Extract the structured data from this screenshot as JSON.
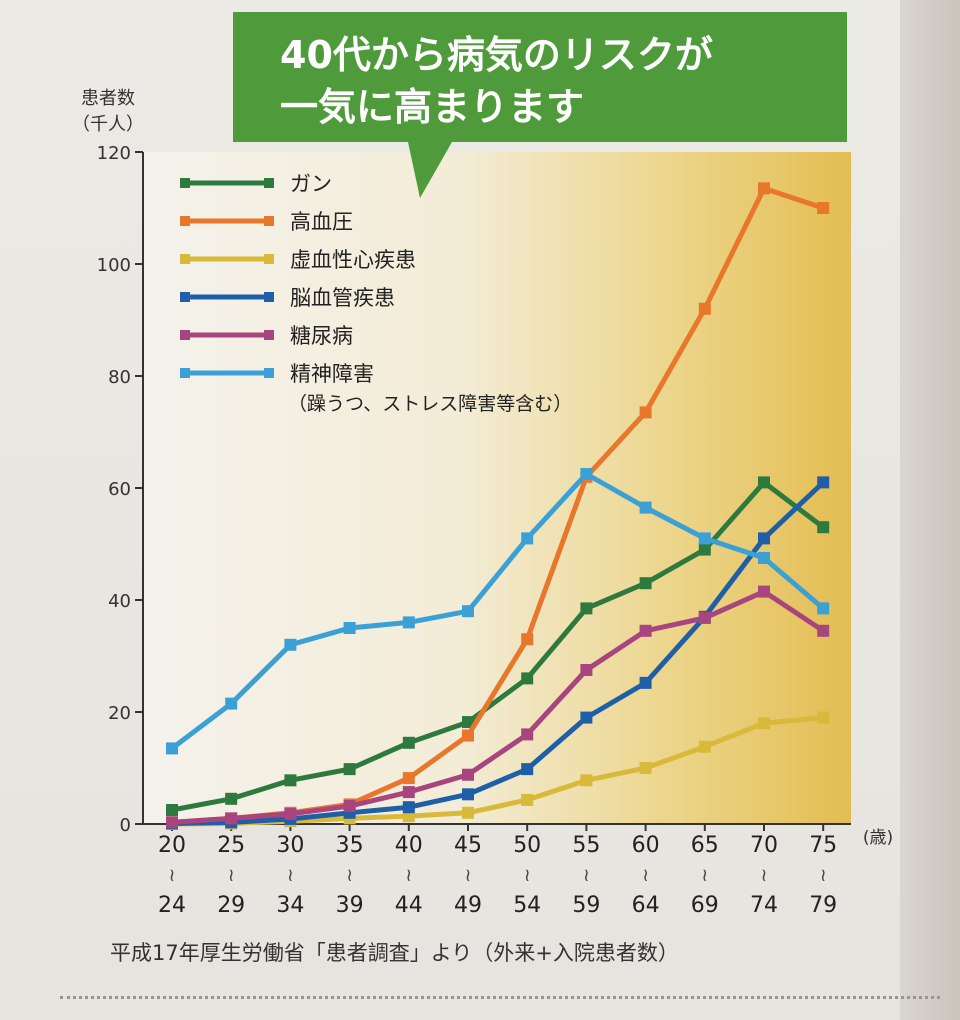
{
  "callout": {
    "line1": "40代から病気のリスクが",
    "line2": "一気に高まります",
    "bg_color": "#4f9a3a",
    "text_color": "#ffffff"
  },
  "source_note": "平成17年厚生労働省「患者調査」より（外来+入院患者数）",
  "chart_data": {
    "type": "line",
    "ylabel_line1": "患者数",
    "ylabel_line2": "（千人）",
    "xunit": "(歳)",
    "ylim": [
      0,
      120
    ],
    "yticks": [
      0,
      20,
      40,
      60,
      80,
      100,
      120
    ],
    "grid": false,
    "legend_position": "top-left",
    "legend_note": "（躁うつ、ストレス障害等含む）",
    "categories": [
      {
        "from": "20",
        "to": "24"
      },
      {
        "from": "25",
        "to": "29"
      },
      {
        "from": "30",
        "to": "34"
      },
      {
        "from": "35",
        "to": "39"
      },
      {
        "from": "40",
        "to": "44"
      },
      {
        "from": "45",
        "to": "49"
      },
      {
        "from": "50",
        "to": "54"
      },
      {
        "from": "55",
        "to": "59"
      },
      {
        "from": "60",
        "to": "64"
      },
      {
        "from": "65",
        "to": "69"
      },
      {
        "from": "70",
        "to": "74"
      },
      {
        "from": "75",
        "to": "79"
      }
    ],
    "range_mark": "≀",
    "series": [
      {
        "name": "ガン",
        "color": "#2e7a3e",
        "values": [
          2.5,
          4.5,
          7.8,
          9.8,
          14.5,
          18.2,
          26,
          38.5,
          43,
          49,
          61,
          53
        ]
      },
      {
        "name": "高血圧",
        "color": "#e8762b",
        "values": [
          0.3,
          1,
          2,
          3.5,
          8.2,
          15.8,
          33,
          62,
          73.5,
          92,
          113.5,
          110
        ]
      },
      {
        "name": "虚血性心疾患",
        "color": "#d8b93a",
        "values": [
          0,
          0.1,
          0.5,
          1,
          1.4,
          2,
          4.3,
          7.8,
          10,
          13.8,
          18,
          19
        ]
      },
      {
        "name": "脳血管疾患",
        "color": "#1f5fa8",
        "values": [
          0.1,
          0.3,
          0.9,
          2,
          3,
          5.3,
          9.8,
          19,
          25.2,
          37,
          51,
          61
        ]
      },
      {
        "name": "糖尿病",
        "color": "#a8447e",
        "values": [
          0.3,
          1,
          1.8,
          3.2,
          5.7,
          8.8,
          16,
          27.5,
          34.5,
          36.8,
          41.5,
          34.5
        ]
      },
      {
        "name": "精神障害",
        "color": "#3aa0d6",
        "values": [
          13.5,
          21.5,
          32,
          35,
          36,
          38,
          51,
          62.5,
          56.5,
          51,
          47.5,
          38.5
        ]
      }
    ]
  }
}
